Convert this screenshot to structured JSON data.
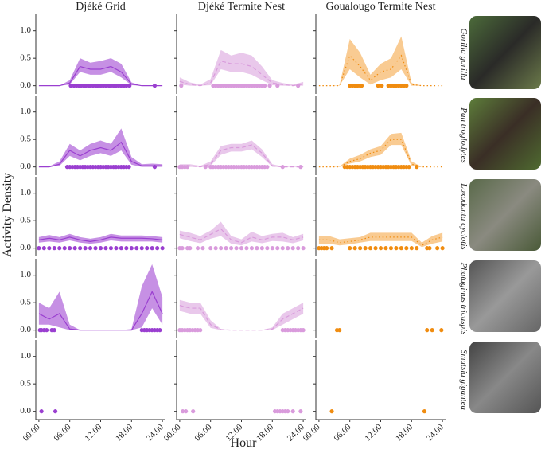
{
  "chart_data": {
    "type": "line",
    "xlabel": "Hour",
    "ylabel": "Activity Density",
    "columns": [
      "Djéké Grid",
      "Djéké Termite Nest",
      "Goualougo Termite Nest"
    ],
    "rows": [
      "Gorilla gorilla",
      "Pan troglodytes",
      "Loxodonta cyclotis",
      "Phataginus tricuspis",
      "Smutsia gigantea"
    ],
    "colors": [
      "#a046d2",
      "#dba4de",
      "#f5a84a"
    ],
    "point_colors": [
      "#9a3fd0",
      "#d99bdc",
      "#f08c10"
    ],
    "line_styles": [
      "solid",
      "dashed",
      "dotted"
    ],
    "x": [
      0,
      2,
      4,
      6,
      8,
      10,
      12,
      14,
      16,
      18,
      20,
      22,
      24
    ],
    "xlim": [
      -0.6,
      24.6
    ],
    "xticks": [
      {
        "value": 0,
        "label": "00:00"
      },
      {
        "value": 6,
        "label": "06:00"
      },
      {
        "value": 12,
        "label": "12:00"
      },
      {
        "value": 18,
        "label": "18:00"
      },
      {
        "value": 24,
        "label": "24:00"
      }
    ],
    "ylim": [
      -0.15,
      1.3
    ],
    "yticks": [
      {
        "value": 0,
        "label": "0.0"
      },
      {
        "value": 0.5,
        "label": "0.5"
      },
      {
        "value": 1,
        "label": "1.0"
      }
    ],
    "panels": [
      [
        {
          "mean": [
            0,
            0,
            0,
            0.05,
            0.35,
            0.3,
            0.3,
            0.35,
            0.25,
            0.03,
            0,
            0,
            0
          ],
          "upper": [
            0,
            0,
            0,
            0.1,
            0.5,
            0.42,
            0.45,
            0.5,
            0.4,
            0.06,
            0,
            0,
            0
          ],
          "lower": [
            0,
            0,
            0,
            0.02,
            0.25,
            0.2,
            0.2,
            0.25,
            0.15,
            0.01,
            0,
            0,
            0
          ],
          "detections": [
            6.2,
            6.8,
            7.3,
            7.8,
            8.2,
            8.7,
            9.1,
            9.6,
            10,
            10.5,
            11,
            11.4,
            12,
            12.5,
            13,
            13.6,
            14,
            14.5,
            15,
            15.5,
            16,
            16.5,
            17,
            17.6,
            22.5
          ]
        },
        {
          "mean": [
            0.08,
            0.02,
            0,
            0.05,
            0.45,
            0.4,
            0.4,
            0.35,
            0.2,
            0.05,
            0.02,
            0,
            0.03
          ],
          "upper": [
            0.15,
            0.06,
            0.02,
            0.12,
            0.65,
            0.55,
            0.6,
            0.55,
            0.35,
            0.1,
            0.05,
            0.02,
            0.07
          ],
          "lower": [
            0.02,
            0,
            0,
            0.01,
            0.3,
            0.25,
            0.25,
            0.2,
            0.1,
            0.01,
            0,
            0,
            0
          ],
          "detections": [
            0.3,
            6.5,
            7,
            7.5,
            8,
            8.5,
            9,
            9.5,
            10,
            10.5,
            11,
            11.5,
            12,
            12.5,
            13,
            13.5,
            14,
            14.5,
            15,
            15.5,
            16,
            16.5,
            17.5,
            19,
            23
          ]
        },
        {
          "mean": [
            0,
            0,
            0,
            0.55,
            0.35,
            0.1,
            0.25,
            0.3,
            0.55,
            0.02,
            0,
            0,
            0
          ],
          "upper": [
            0,
            0,
            0.01,
            0.85,
            0.6,
            0.2,
            0.4,
            0.5,
            0.9,
            0.05,
            0,
            0,
            0
          ],
          "lower": [
            0,
            0,
            0,
            0.3,
            0.15,
            0.02,
            0.1,
            0.15,
            0.3,
            0,
            0,
            0,
            0
          ],
          "detections": [
            6,
            6.5,
            7,
            7.5,
            8,
            8.3,
            11.5,
            12.2,
            13.5,
            14,
            14.5,
            15,
            15.5,
            16,
            16.5,
            17
          ]
        }
      ],
      [
        {
          "mean": [
            0,
            0,
            0.05,
            0.3,
            0.2,
            0.3,
            0.35,
            0.3,
            0.45,
            0.1,
            0.02,
            0.02,
            0.02
          ],
          "upper": [
            0,
            0.01,
            0.1,
            0.42,
            0.3,
            0.42,
            0.48,
            0.42,
            0.7,
            0.18,
            0.05,
            0.06,
            0.05
          ],
          "lower": [
            0,
            0,
            0.02,
            0.2,
            0.12,
            0.2,
            0.25,
            0.2,
            0.3,
            0.04,
            0,
            0,
            0
          ],
          "detections": [
            5.5,
            6,
            6.5,
            7,
            7.5,
            8,
            8.5,
            9,
            9.5,
            10,
            10.5,
            11,
            11.5,
            12,
            12.5,
            13,
            13.5,
            14,
            14.5,
            15,
            15.5,
            16,
            16.5,
            17,
            17.5,
            22.5
          ]
        },
        {
          "mean": [
            0.02,
            0.02,
            0,
            0.05,
            0.3,
            0.35,
            0.35,
            0.4,
            0.25,
            0.02,
            0,
            0,
            0
          ],
          "upper": [
            0.05,
            0.05,
            0.02,
            0.1,
            0.38,
            0.42,
            0.42,
            0.48,
            0.32,
            0.05,
            0.01,
            0.01,
            0.02
          ],
          "lower": [
            0,
            0,
            0,
            0.02,
            0.22,
            0.28,
            0.28,
            0.32,
            0.18,
            0,
            0,
            0,
            0
          ],
          "detections": [
            0,
            0.5,
            1,
            1.5,
            5,
            6,
            6.5,
            7,
            7.5,
            8,
            8.5,
            9,
            9.5,
            10,
            10.5,
            11,
            11.5,
            12,
            12.5,
            13,
            13.5,
            14,
            14.5,
            15,
            15.5,
            16,
            16.5,
            17,
            20,
            23.5
          ]
        },
        {
          "mean": [
            0,
            0,
            0,
            0.1,
            0.15,
            0.25,
            0.3,
            0.5,
            0.5,
            0.05,
            0,
            0,
            0
          ],
          "upper": [
            0,
            0,
            0.01,
            0.15,
            0.22,
            0.32,
            0.38,
            0.6,
            0.62,
            0.1,
            0,
            0,
            0
          ],
          "lower": [
            0,
            0,
            0,
            0.06,
            0.1,
            0.18,
            0.22,
            0.4,
            0.4,
            0.02,
            0,
            0,
            0
          ],
          "detections": [
            5,
            5.5,
            6,
            6.5,
            7,
            7.5,
            8,
            8.5,
            9,
            9.5,
            10,
            10.5,
            11,
            11.5,
            12,
            12.5,
            13,
            13.5,
            14,
            14.5,
            15,
            15.5,
            16,
            16.5,
            17,
            17.5,
            19
          ]
        }
      ],
      [
        {
          "mean": [
            0.15,
            0.18,
            0.15,
            0.2,
            0.15,
            0.12,
            0.15,
            0.2,
            0.18,
            0.18,
            0.18,
            0.17,
            0.15
          ],
          "upper": [
            0.2,
            0.24,
            0.2,
            0.26,
            0.2,
            0.17,
            0.2,
            0.26,
            0.23,
            0.23,
            0.23,
            0.22,
            0.2
          ],
          "lower": [
            0.1,
            0.12,
            0.1,
            0.14,
            0.1,
            0.08,
            0.1,
            0.14,
            0.12,
            0.12,
            0.12,
            0.12,
            0.1
          ],
          "detections": [
            0,
            1,
            2,
            3,
            4,
            5,
            6,
            7,
            8,
            9,
            10,
            11,
            12,
            13,
            14,
            15,
            16,
            17,
            18,
            19,
            20,
            21,
            22,
            23,
            24
          ]
        },
        {
          "mean": [
            0.25,
            0.2,
            0.15,
            0.25,
            0.35,
            0.15,
            0.1,
            0.2,
            0.15,
            0.2,
            0.2,
            0.15,
            0.2
          ],
          "upper": [
            0.32,
            0.28,
            0.22,
            0.32,
            0.48,
            0.22,
            0.16,
            0.3,
            0.22,
            0.26,
            0.28,
            0.2,
            0.26
          ],
          "lower": [
            0.18,
            0.13,
            0.09,
            0.17,
            0.22,
            0.08,
            0.05,
            0.12,
            0.09,
            0.13,
            0.12,
            0.09,
            0.14
          ],
          "detections": [
            0,
            0.5,
            1.5,
            2,
            3.5,
            4.5,
            6,
            7,
            8,
            9,
            10,
            11,
            12,
            13,
            14,
            15,
            16,
            17,
            18,
            19,
            20,
            21,
            22,
            23,
            24
          ]
        },
        {
          "mean": [
            0.15,
            0.15,
            0.1,
            0.12,
            0.15,
            0.2,
            0.2,
            0.2,
            0.2,
            0.2,
            0.05,
            0.15,
            0.2
          ],
          "upper": [
            0.22,
            0.22,
            0.16,
            0.18,
            0.2,
            0.28,
            0.28,
            0.28,
            0.28,
            0.28,
            0.1,
            0.22,
            0.28
          ],
          "lower": [
            0.08,
            0.08,
            0.05,
            0.07,
            0.1,
            0.13,
            0.13,
            0.13,
            0.13,
            0.13,
            0.02,
            0.08,
            0.12
          ],
          "detections": [
            0,
            0.5,
            1,
            1.5,
            2.5,
            6,
            7,
            8,
            9,
            10,
            11,
            12,
            13,
            14,
            15,
            16,
            17,
            18,
            19,
            21,
            21.5,
            23,
            24
          ]
        }
      ],
      [
        {
          "mean": [
            0.3,
            0.2,
            0.3,
            0.02,
            0,
            0,
            0,
            0,
            0,
            0,
            0.3,
            0.7,
            0.3
          ],
          "upper": [
            0.5,
            0.4,
            0.7,
            0.1,
            0,
            0,
            0,
            0,
            0,
            0.02,
            0.8,
            1.2,
            0.6
          ],
          "lower": [
            0.1,
            0.1,
            0.05,
            0,
            0,
            0,
            0,
            0,
            0,
            0,
            0.05,
            0.4,
            0.1
          ],
          "detections": [
            0.2,
            0.5,
            1,
            1.5,
            2.5,
            3,
            20,
            20.5,
            21,
            21.5,
            22,
            22.5,
            23,
            23.5
          ]
        },
        {
          "mean": [
            0.45,
            0.4,
            0.4,
            0.1,
            0.01,
            0,
            0,
            0,
            0,
            0.02,
            0.2,
            0.3,
            0.4
          ],
          "upper": [
            0.55,
            0.5,
            0.5,
            0.18,
            0.02,
            0,
            0,
            0,
            0,
            0.05,
            0.3,
            0.4,
            0.5
          ],
          "lower": [
            0.35,
            0.3,
            0.3,
            0.04,
            0,
            0,
            0,
            0,
            0,
            0,
            0.1,
            0.2,
            0.3
          ],
          "detections": [
            0,
            0.5,
            1,
            1.5,
            2,
            2.5,
            3,
            3.5,
            4,
            20,
            20.5,
            21,
            21.5,
            22,
            22.5,
            23,
            23.5,
            24
          ]
        },
        {
          "detections": [
            3.5,
            4,
            21,
            22,
            23.8
          ]
        }
      ],
      [
        {
          "detections": [
            0.5,
            3.2
          ]
        },
        {
          "detections": [
            0.6,
            1.2,
            2.6,
            18.5,
            19,
            19.5,
            20,
            20.5,
            21,
            22,
            23.5
          ]
        },
        {
          "detections": [
            2.5,
            20.5
          ]
        }
      ]
    ]
  }
}
